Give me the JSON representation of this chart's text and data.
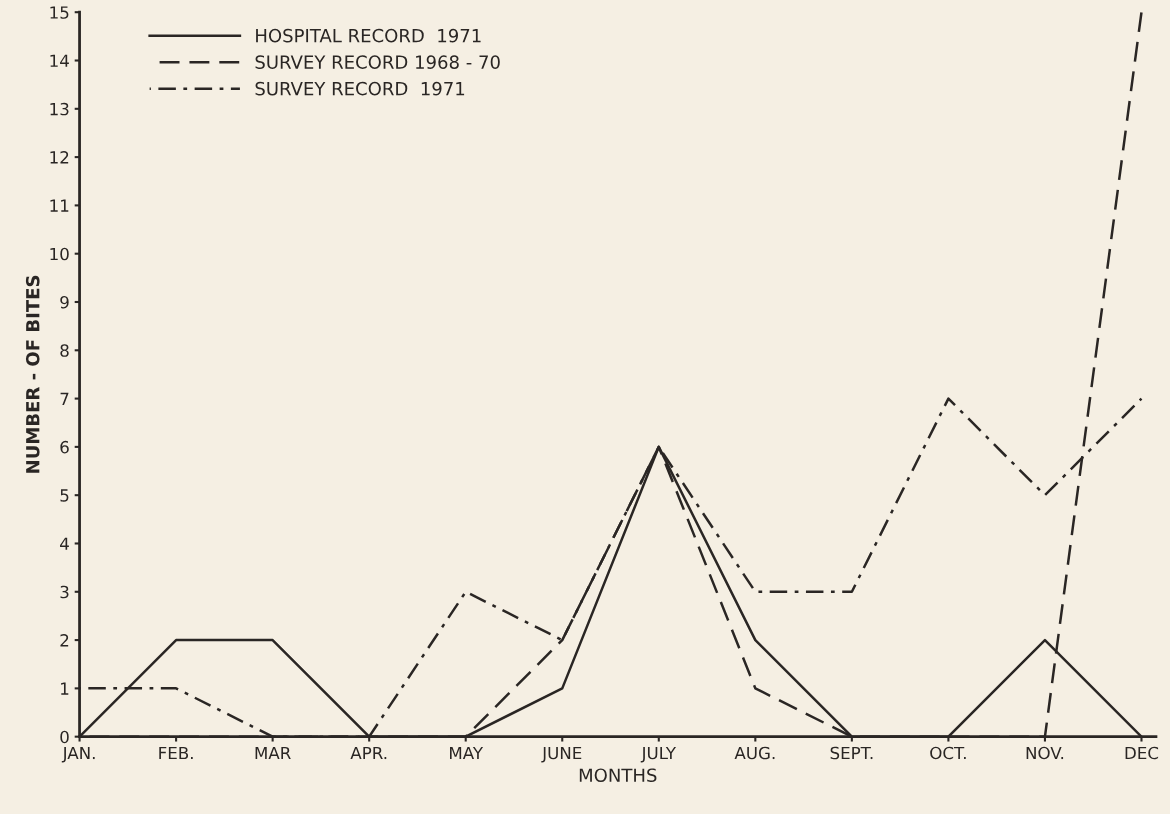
{
  "chart_data": {
    "type": "line",
    "xlabel": "MONTHS",
    "ylabel": "NUMBER - OF BITES",
    "categories": [
      "JAN.",
      "FEB.",
      "MAR",
      "APR.",
      "MAY",
      "JUNE",
      "JULY",
      "AUG.",
      "SEPT.",
      "OCT.",
      "NOV.",
      "DEC"
    ],
    "ylim": [
      0,
      15
    ],
    "yticks": [
      0,
      1,
      2,
      3,
      4,
      5,
      6,
      7,
      8,
      9,
      10,
      11,
      12,
      13,
      14,
      15
    ],
    "grid": false,
    "legend": "top left",
    "marker": "none",
    "series": [
      {
        "name": "HOSPITAL RECORD  1971",
        "color": "#2a2624",
        "line_style": "solid",
        "values": [
          0,
          2,
          2,
          0,
          0,
          1,
          6,
          2,
          0,
          0,
          2,
          0
        ]
      },
      {
        "name": "SURVEY RECORD 1968 - 70",
        "color": "#2a2624",
        "line_style": "dashed",
        "values": [
          0,
          0,
          0,
          0,
          0,
          2,
          6,
          1,
          0,
          0,
          0,
          15
        ]
      },
      {
        "name": "SURVEY RECORD  1971",
        "color": "#2a2624",
        "line_style": "dashdot",
        "values": [
          1,
          1,
          0,
          0,
          3,
          2,
          6,
          3,
          3,
          7,
          5,
          7
        ]
      }
    ]
  }
}
